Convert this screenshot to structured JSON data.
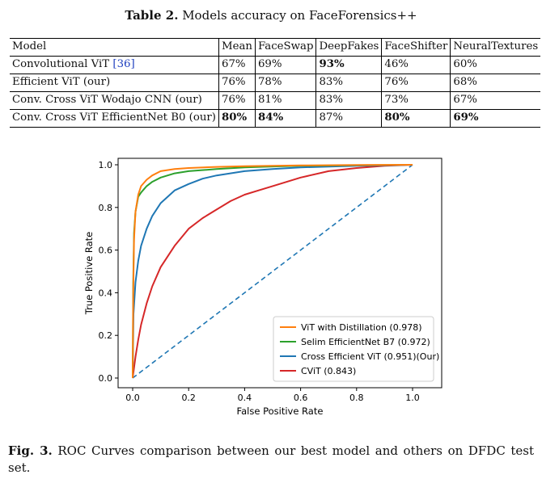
{
  "table": {
    "label": "Table 2.",
    "title": "Models accuracy on FaceForensics++",
    "columns": [
      "Model",
      "Mean",
      "FaceSwap",
      "DeepFakes",
      "FaceShifter",
      "NeuralTextures"
    ],
    "rows": [
      {
        "model": "Convolutional ViT",
        "ref": "[36]",
        "values": [
          "67%",
          "69%",
          "93%",
          "46%",
          "60%"
        ],
        "bold": [
          false,
          false,
          true,
          false,
          false
        ]
      },
      {
        "model": "Efficient ViT (our)",
        "ref": "",
        "values": [
          "76%",
          "78%",
          "83%",
          "76%",
          "68%"
        ],
        "bold": [
          false,
          false,
          false,
          false,
          false
        ]
      },
      {
        "model": "Conv. Cross ViT Wodajo CNN (our)",
        "ref": "",
        "values": [
          "76%",
          "81%",
          "83%",
          "73%",
          "67%"
        ],
        "bold": [
          false,
          false,
          false,
          false,
          false
        ]
      },
      {
        "model": "Conv. Cross ViT EfficientNet B0 (our)",
        "ref": "",
        "values": [
          "80%",
          "84%",
          "87%",
          "80%",
          "69%"
        ],
        "bold": [
          true,
          true,
          false,
          true,
          true
        ]
      }
    ]
  },
  "chart_data": {
    "type": "line",
    "xlabel": "False Positive Rate",
    "ylabel": "True Positive Rate",
    "xlim": [
      0.0,
      1.0
    ],
    "ylim": [
      0.0,
      1.0
    ],
    "xticks": [
      "0.0",
      "0.2",
      "0.4",
      "0.6",
      "0.8",
      "1.0"
    ],
    "yticks": [
      "0.0",
      "0.2",
      "0.4",
      "0.6",
      "0.8",
      "1.0"
    ],
    "legend_position": "bottom-right",
    "grid": false,
    "series": [
      {
        "name": "ViT with Distillation (0.978)",
        "color": "#ff7f0e",
        "x": [
          0,
          0.002,
          0.005,
          0.01,
          0.02,
          0.03,
          0.05,
          0.07,
          0.1,
          0.15,
          0.2,
          0.3,
          0.4,
          0.5,
          0.6,
          0.8,
          1.0
        ],
        "y": [
          0,
          0.4,
          0.65,
          0.78,
          0.86,
          0.9,
          0.93,
          0.95,
          0.97,
          0.98,
          0.985,
          0.99,
          0.993,
          0.995,
          0.997,
          0.999,
          1.0
        ]
      },
      {
        "name": "Selim EfficientNet B7 (0.972)",
        "color": "#2ca02c",
        "x": [
          0,
          0.002,
          0.005,
          0.01,
          0.02,
          0.03,
          0.05,
          0.07,
          0.1,
          0.15,
          0.2,
          0.3,
          0.4,
          0.5,
          0.6,
          0.8,
          1.0
        ],
        "y": [
          0,
          0.45,
          0.68,
          0.78,
          0.85,
          0.87,
          0.9,
          0.92,
          0.94,
          0.96,
          0.97,
          0.98,
          0.988,
          0.992,
          0.995,
          0.998,
          1.0
        ]
      },
      {
        "name": "Cross Efficient ViT (0.951)(Our)",
        "color": "#1f77b4",
        "x": [
          0,
          0.003,
          0.01,
          0.02,
          0.03,
          0.05,
          0.07,
          0.1,
          0.15,
          0.2,
          0.25,
          0.3,
          0.4,
          0.5,
          0.6,
          0.8,
          1.0
        ],
        "y": [
          0,
          0.3,
          0.45,
          0.55,
          0.62,
          0.7,
          0.76,
          0.82,
          0.88,
          0.91,
          0.935,
          0.95,
          0.97,
          0.98,
          0.988,
          0.995,
          1.0
        ]
      },
      {
        "name": "CViT (0.843)",
        "color": "#d62728",
        "x": [
          0,
          0.01,
          0.02,
          0.03,
          0.05,
          0.07,
          0.1,
          0.15,
          0.2,
          0.25,
          0.3,
          0.35,
          0.4,
          0.45,
          0.5,
          0.6,
          0.7,
          0.8,
          0.9,
          1.0
        ],
        "y": [
          0,
          0.1,
          0.18,
          0.25,
          0.35,
          0.43,
          0.52,
          0.62,
          0.7,
          0.75,
          0.79,
          0.83,
          0.86,
          0.88,
          0.9,
          0.94,
          0.97,
          0.985,
          0.995,
          1.0
        ]
      },
      {
        "name": "",
        "color": "#1f77b4",
        "dashed": true,
        "x": [
          0,
          1
        ],
        "y": [
          0,
          1
        ]
      }
    ]
  },
  "figure": {
    "label": "Fig. 3.",
    "caption": "ROC Curves comparison between our best model and others on DFDC test set."
  }
}
